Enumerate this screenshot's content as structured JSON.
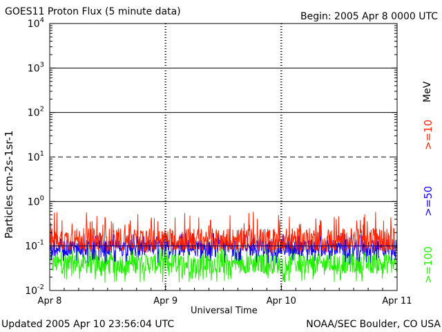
{
  "header": {
    "title": "GOES11 Proton Flux (5 minute data)",
    "begin": "Begin: 2005 Apr 8 0000 UTC"
  },
  "footer": {
    "updated": "Updated 2005 Apr 10 23:56:04 UTC",
    "credit": "NOAA/SEC Boulder, CO USA"
  },
  "chart_data": {
    "type": "line",
    "title": "GOES11 Proton Flux (5 minute data)",
    "xlabel": "Universal Time",
    "ylabel": "Particles cm-2s-1sr-1",
    "yscale": "log",
    "ylim": [
      0.01,
      10000
    ],
    "xlim": [
      "2005-04-08",
      "2005-04-11"
    ],
    "x_ticks": [
      "Apr 8",
      "Apr 9",
      "Apr 10",
      "Apr 11"
    ],
    "y_ticks": [
      "10-2",
      "10-1",
      "100",
      "101",
      "102",
      "103",
      "104"
    ],
    "unit_label": "MeV",
    "colors": {
      "red": "#ff2200",
      "blue": "#1100ee",
      "green": "#22ee00"
    },
    "series": [
      {
        "name": ">=10",
        "color": "#ff2200",
        "typical": 0.14,
        "range": [
          0.07,
          0.6
        ]
      },
      {
        "name": ">=50",
        "color": "#1100ee",
        "typical": 0.09,
        "range": [
          0.04,
          0.2
        ]
      },
      {
        "name": ">=100",
        "color": "#22ee00",
        "typical": 0.04,
        "range": [
          0.015,
          0.1
        ]
      }
    ],
    "reference_lines": [
      {
        "y": 0.1,
        "style": "solid"
      },
      {
        "y": 1,
        "style": "solid"
      },
      {
        "y": 10,
        "style": "dashed"
      },
      {
        "y": 100,
        "style": "solid"
      },
      {
        "y": 1000,
        "style": "solid"
      }
    ]
  }
}
